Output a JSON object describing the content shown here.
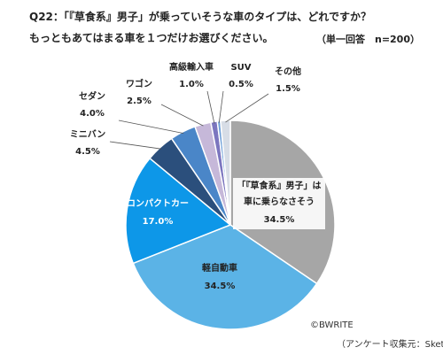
{
  "header": {
    "question": "Q22：「『草食系』男子」が乗っていそうな車のタイプは、どれですか？",
    "instruction": "もっともあてはまる車を１つだけお選びください。",
    "note": "（単一回答　n=200）"
  },
  "chart_data": {
    "type": "pie",
    "start_angle_deg": 0,
    "direction": "clockwise",
    "slices": [
      {
        "label": "「『草食系』男子」は車に乗らなさそう",
        "value": 34.5,
        "display": "34.5%",
        "color": "#a6a6a6"
      },
      {
        "label": "軽自動車",
        "value": 34.5,
        "display": "34.5%",
        "color": "#5bb3e6"
      },
      {
        "label": "コンパクトカー",
        "value": 17.0,
        "display": "17.0%",
        "color": "#0d97e8"
      },
      {
        "label": "ミニバン",
        "value": 4.5,
        "display": "4.5%",
        "color": "#2b4f7c"
      },
      {
        "label": "セダン",
        "value": 4.0,
        "display": "4.0%",
        "color": "#4a86c8"
      },
      {
        "label": "ワゴン",
        "value": 2.5,
        "display": "2.5%",
        "color": "#c6b8d9"
      },
      {
        "label": "高級輸入車",
        "value": 1.0,
        "display": "1.0%",
        "color": "#7c76bf"
      },
      {
        "label": "SUV",
        "value": 0.5,
        "display": "0.5%",
        "color": "#6fa0d8"
      },
      {
        "label": "その他",
        "value": 1.5,
        "display": "1.5%",
        "color": "#d7dde6"
      }
    ]
  },
  "credits": {
    "copyright": "©BWRITE",
    "source": "（アンケート収集元：Skets）"
  }
}
